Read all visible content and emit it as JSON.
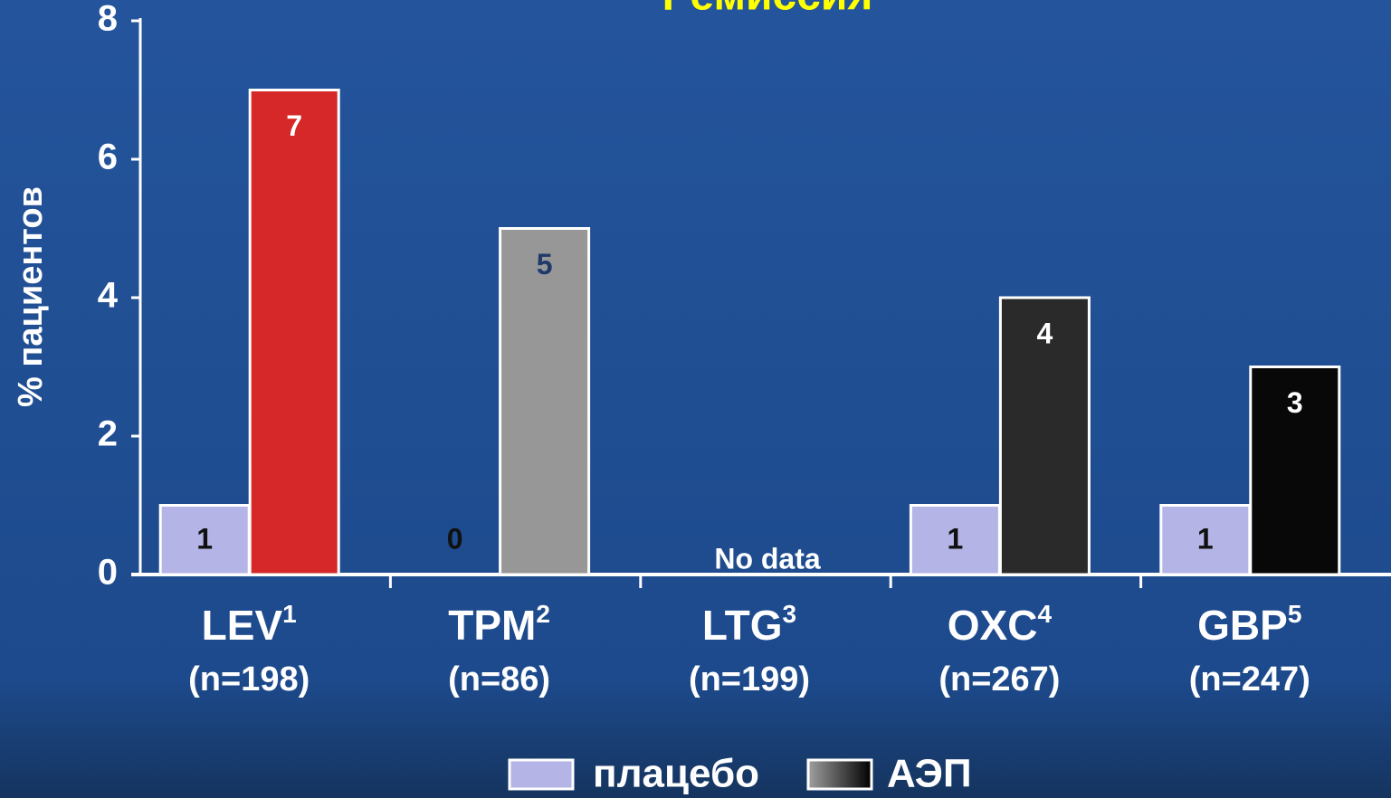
{
  "chart_data": {
    "type": "bar",
    "title": "Ремиссия",
    "y_label": "% пациентов",
    "categories": [
      "LEV",
      "TPM",
      "LTG",
      "OXC",
      "GBP"
    ],
    "category_superscripts": [
      "1",
      "2",
      "3",
      "4",
      "5"
    ],
    "category_subtitles": [
      "(n=198)",
      "(n=86)",
      "(n=199)",
      "(n=267)",
      "(n=247)"
    ],
    "series": [
      {
        "name": "плацебо",
        "color": "#b4b4e6",
        "values": [
          1,
          0,
          null,
          1,
          1
        ]
      },
      {
        "name": "АЭП",
        "color": "#111111",
        "colors": [
          "#d62828",
          "#979797",
          null,
          "#2a2a2a",
          "#080808"
        ],
        "values": [
          7,
          5,
          null,
          4,
          3
        ]
      }
    ],
    "annotations": [
      "No data"
    ],
    "ylim": [
      0,
      8
    ],
    "yticks": [
      0,
      2,
      4,
      6,
      8
    ]
  }
}
